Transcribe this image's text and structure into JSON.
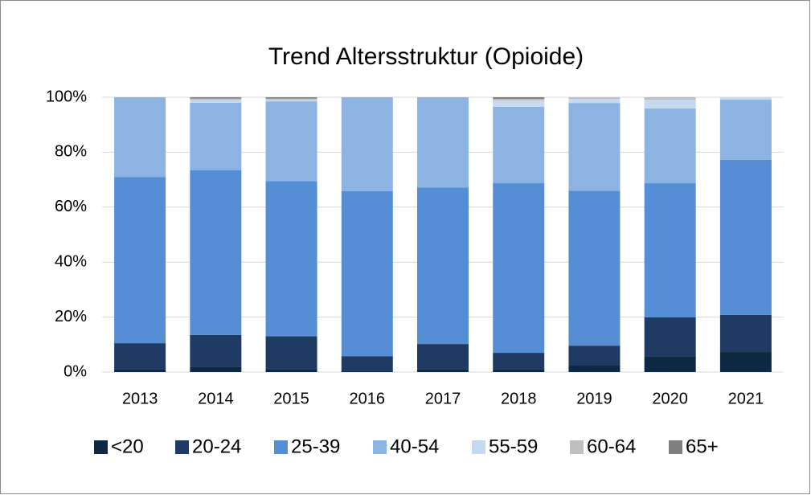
{
  "chart_data": {
    "type": "stacked_bar",
    "title": "Trend Altersstruktur (Opioide)",
    "categories": [
      "2013",
      "2014",
      "2015",
      "2016",
      "2017",
      "2018",
      "2019",
      "2020",
      "2021"
    ],
    "series": [
      {
        "name": "<20",
        "color": "#0e2841",
        "values": [
          1,
          2,
          1,
          0.3,
          1,
          1,
          2.5,
          5.8,
          7.3
        ]
      },
      {
        "name": "20-24",
        "color": "#1f3b63",
        "values": [
          9.5,
          11.5,
          12,
          5.5,
          9.2,
          6,
          7.1,
          14.1,
          13.5
        ]
      },
      {
        "name": "25-39",
        "color": "#558ed5",
        "values": [
          60.5,
          60,
          56.5,
          60,
          57,
          61.7,
          56.4,
          48.8,
          56.4
        ]
      },
      {
        "name": "40-54",
        "color": "#8db3e2",
        "values": [
          29,
          24.5,
          29,
          34.2,
          32.8,
          27.8,
          31.9,
          27.2,
          21.9
        ]
      },
      {
        "name": "55-59",
        "color": "#c6d9f1",
        "values": [
          0,
          1,
          0.5,
          0,
          0,
          2.3,
          1.5,
          3.2,
          0.9
        ]
      },
      {
        "name": "60-64",
        "color": "#bfbfbf",
        "values": [
          0,
          0.5,
          0.5,
          0,
          0,
          0.6,
          0.6,
          0.9,
          0
        ]
      },
      {
        "name": "65+",
        "color": "#7f7f7f",
        "values": [
          0,
          0.5,
          0.5,
          0,
          0,
          0.6,
          0,
          0,
          0
        ]
      }
    ],
    "ylim": [
      0,
      100
    ],
    "yticks": [
      {
        "value": 0,
        "label": "0%"
      },
      {
        "value": 20,
        "label": "20%"
      },
      {
        "value": 40,
        "label": "40%"
      },
      {
        "value": 60,
        "label": "60%"
      },
      {
        "value": 80,
        "label": "80%"
      },
      {
        "value": 100,
        "label": "100%"
      }
    ],
    "grid": true,
    "legend": "bottom"
  }
}
